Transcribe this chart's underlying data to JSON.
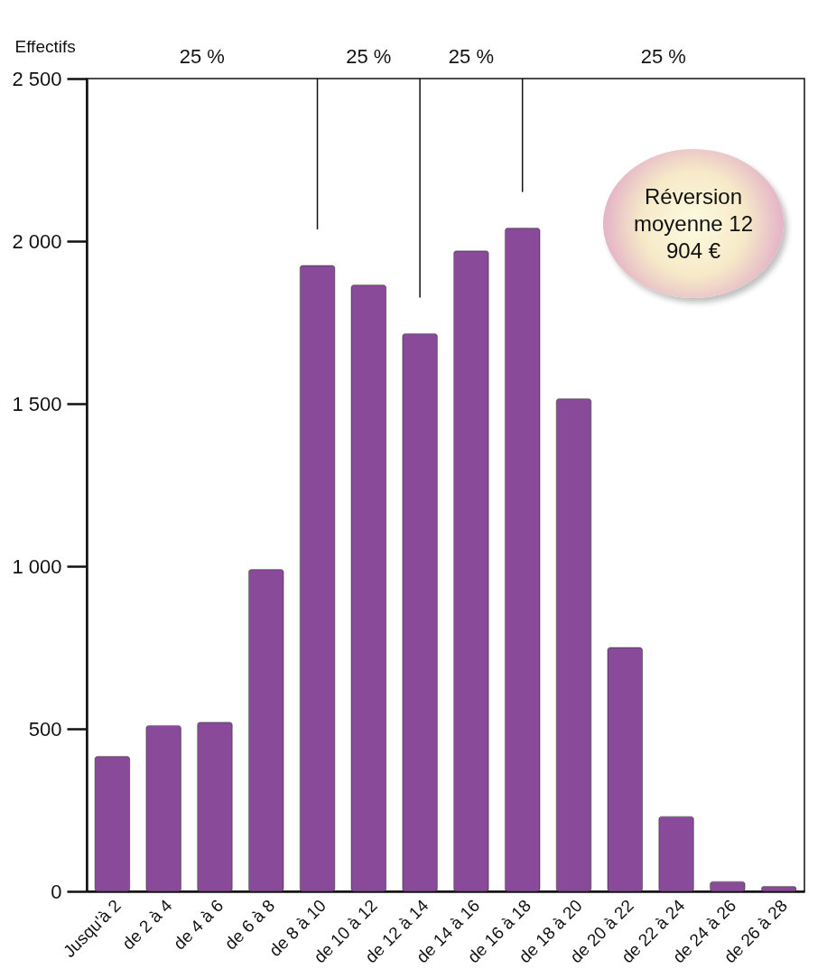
{
  "chart_data": {
    "type": "bar",
    "ylabel": "Effectifs",
    "categories": [
      "Jusqu'à 2",
      "de 2 à 4",
      "de 4 à 6",
      "de 6 à 8",
      "de 8 à 10",
      "de 10 à 12",
      "de 12 à 14",
      "de 14 à 16",
      "de 16 à 18",
      "de 18 à 20",
      "de 20 à 22",
      "de 22 à 24",
      "de 24 à 26",
      "de 26 à 28"
    ],
    "values": [
      415,
      510,
      520,
      990,
      1925,
      1865,
      1715,
      1970,
      2040,
      1515,
      750,
      230,
      30,
      15
    ],
    "color": "#8a4a9a",
    "ylim": [
      0,
      2500
    ],
    "yticks": [
      0,
      500,
      {
        "value": 1000,
        "label": "1 000"
      },
      {
        "value": 1500,
        "label": "1 500"
      },
      {
        "value": 2000,
        "label": "2 000"
      },
      {
        "value": 2500,
        "label": "2 500"
      }
    ],
    "grid": false,
    "ref_lines": [
      {
        "axis": "x",
        "value": "de 8 à 10"
      },
      {
        "axis": "x",
        "value": "de 12 à 14"
      },
      {
        "axis": "x",
        "value": "de 16 à 18"
      }
    ],
    "annotations": [
      "25 %",
      "25 %",
      "25 %",
      "25 %",
      "Réversion moyenne 12 904 €"
    ]
  }
}
